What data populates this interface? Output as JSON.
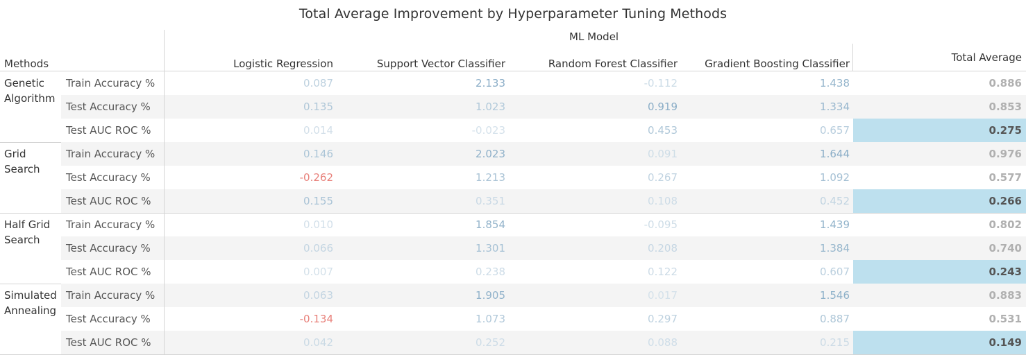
{
  "title": "Total Average Improvement by Hyperparameter Tuning Methods",
  "column_group_label": "ML Model",
  "row_header": "Methods",
  "columns": [
    "Logistic Regression",
    "Support Vector Classifier",
    "Random Forest Classifier",
    "Gradient Boosting Classifier",
    "Total Average"
  ],
  "colors": {
    "highlight": "#bde0ee",
    "negative_text": "#e8807a",
    "band": "#f4f4f4",
    "grid_line": "#d4d4d4"
  },
  "chart_data": {
    "type": "table",
    "title": "Total Average Improvement by Hyperparameter Tuning Methods",
    "column_group": "ML Model",
    "columns": [
      "Logistic Regression",
      "Support Vector Classifier",
      "Random Forest Classifier",
      "Gradient Boosting Classifier",
      "Total Average"
    ],
    "methods": [
      {
        "name": "Genetic Algorithm",
        "rows": [
          {
            "metric": "Train Accuracy %",
            "values": [
              "0.087",
              "2.133",
              "-0.112",
              "1.438",
              "0.886"
            ]
          },
          {
            "metric": "Test Accuracy %",
            "values": [
              "0.135",
              "1.023",
              "0.919",
              "1.334",
              "0.853"
            ]
          },
          {
            "metric": "Test AUC ROC %",
            "values": [
              "0.014",
              "-0.023",
              "0.453",
              "0.657",
              "0.275"
            ]
          }
        ]
      },
      {
        "name": "Grid Search",
        "rows": [
          {
            "metric": "Train Accuracy %",
            "values": [
              "0.146",
              "2.023",
              "0.091",
              "1.644",
              "0.976"
            ]
          },
          {
            "metric": "Test Accuracy %",
            "values": [
              "-0.262",
              "1.213",
              "0.267",
              "1.092",
              "0.577"
            ]
          },
          {
            "metric": "Test AUC ROC %",
            "values": [
              "0.155",
              "0.351",
              "0.108",
              "0.452",
              "0.266"
            ]
          }
        ]
      },
      {
        "name": "Half Grid Search",
        "rows": [
          {
            "metric": "Train Accuracy %",
            "values": [
              "0.010",
              "1.854",
              "-0.095",
              "1.439",
              "0.802"
            ]
          },
          {
            "metric": "Test Accuracy %",
            "values": [
              "0.066",
              "1.301",
              "0.208",
              "1.384",
              "0.740"
            ]
          },
          {
            "metric": "Test AUC ROC %",
            "values": [
              "0.007",
              "0.238",
              "0.122",
              "0.607",
              "0.243"
            ]
          }
        ]
      },
      {
        "name": "Simulated Annealing",
        "rows": [
          {
            "metric": "Train Accuracy %",
            "values": [
              "0.063",
              "1.905",
              "0.017",
              "1.546",
              "0.883"
            ]
          },
          {
            "metric": "Test Accuracy %",
            "values": [
              "-0.134",
              "1.073",
              "0.297",
              "0.887",
              "0.531"
            ]
          },
          {
            "metric": "Test AUC ROC %",
            "values": [
              "0.042",
              "0.252",
              "0.088",
              "0.215",
              "0.149"
            ]
          }
        ]
      }
    ]
  }
}
